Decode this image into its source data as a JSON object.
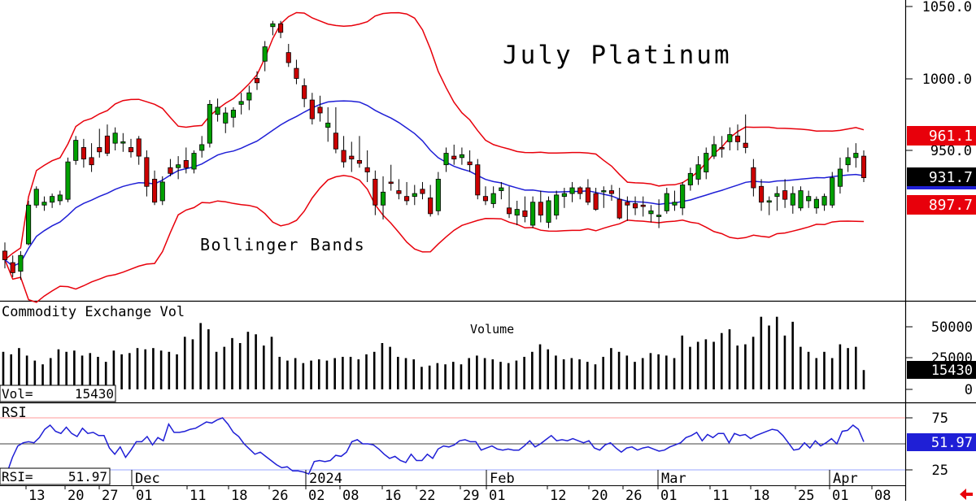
{
  "colors": {
    "band": "#e8000b",
    "mid": "#1f1fd6",
    "up": "#00a000",
    "down": "#cc0000",
    "rsi": "#1f1fd6",
    "vol": "#000000",
    "label_red": "#e8000b",
    "label_black": "#000000",
    "label_blue": "#1f1fd6"
  },
  "price_panel": {
    "title": "July Platinum",
    "bands_label": "Bollinger Bands",
    "axis_ticks": [
      "1050.0",
      "1000.0",
      "950.0"
    ],
    "badges": {
      "upper": "961.1",
      "last": "931.7",
      "lower": "897.7"
    }
  },
  "volume_panel": {
    "title": "Commodity Exchange Vol",
    "center_label": "Volume",
    "axis_ticks": [
      "50000",
      "25000",
      "0"
    ],
    "readout_label": "Vol=",
    "readout_value": "15430",
    "badge": "15430"
  },
  "rsi_panel": {
    "title": "RSI",
    "axis_ticks": [
      "75",
      "25"
    ],
    "readout_label": "RSI=",
    "readout_value": "51.97",
    "badge": "51.97"
  },
  "x_axis": {
    "day_labels": [
      "13",
      "20",
      "27",
      "01",
      "11",
      "18",
      "26",
      "02",
      "08",
      "16",
      "22",
      "29",
      "01",
      "12",
      "20",
      "26",
      "01",
      "11",
      "18",
      "25",
      "01",
      "08"
    ],
    "month_labels": [
      "Dec",
      "2024",
      "Feb",
      "Mar",
      "Apr"
    ]
  },
  "chart_data": [
    {
      "type": "candlestick",
      "title": "July Platinum",
      "annotations": [
        "Bollinger Bands"
      ],
      "ylim": [
        870,
        1060
      ],
      "yticks": [
        950,
        1000,
        1050
      ],
      "last_values": {
        "upper_band": 961.1,
        "close": 931.7,
        "lower_band": 897.7
      },
      "x_labels": [
        "13",
        "20",
        "27",
        "01",
        "11",
        "18",
        "26",
        "02",
        "08",
        "16",
        "22",
        "29",
        "01",
        "12",
        "20",
        "26",
        "01",
        "11",
        "18",
        "25",
        "01",
        "08"
      ],
      "month_labels": [
        "Dec",
        "2024",
        "Feb",
        "Mar",
        "Apr"
      ],
      "ohlc": [
        [
          880,
          886,
          868,
          874
        ],
        [
          872,
          877,
          862,
          865
        ],
        [
          866,
          880,
          860,
          877
        ],
        [
          885,
          915,
          884,
          912
        ],
        [
          912,
          925,
          910,
          923
        ],
        [
          912,
          918,
          908,
          914
        ],
        [
          914,
          920,
          910,
          918
        ],
        [
          915,
          922,
          912,
          919
        ],
        [
          916,
          945,
          914,
          942
        ],
        [
          943,
          960,
          940,
          957
        ],
        [
          952,
          958,
          938,
          944
        ],
        [
          945,
          955,
          935,
          940
        ],
        [
          952,
          965,
          945,
          949
        ],
        [
          960,
          968,
          946,
          948
        ],
        [
          955,
          966,
          950,
          962
        ],
        [
          955,
          962,
          949,
          956
        ],
        [
          952,
          958,
          945,
          949
        ],
        [
          958,
          960,
          940,
          946
        ],
        [
          945,
          950,
          918,
          925
        ],
        [
          930,
          936,
          912,
          914
        ],
        [
          915,
          932,
          912,
          928
        ],
        [
          938,
          944,
          932,
          934
        ],
        [
          938,
          946,
          930,
          940
        ],
        [
          943,
          952,
          934,
          938
        ],
        [
          937,
          950,
          934,
          948
        ],
        [
          950,
          960,
          945,
          954
        ],
        [
          955,
          985,
          952,
          982
        ],
        [
          975,
          986,
          970,
          980
        ],
        [
          969,
          980,
          962,
          976
        ],
        [
          973,
          980,
          966,
          978
        ],
        [
          982,
          990,
          975,
          984
        ],
        [
          985,
          995,
          978,
          990
        ],
        [
          1000,
          1005,
          992,
          997
        ],
        [
          1012,
          1026,
          1005,
          1022
        ],
        [
          1036,
          1040,
          1030,
          1038
        ],
        [
          1038,
          1040,
          1028,
          1032
        ],
        [
          1018,
          1024,
          1008,
          1011
        ],
        [
          1007,
          1013,
          996,
          1000
        ],
        [
          995,
          1000,
          980,
          986
        ],
        [
          985,
          990,
          968,
          972
        ],
        [
          980,
          988,
          970,
          976
        ],
        [
          966,
          980,
          956,
          969
        ],
        [
          962,
          980,
          948,
          951
        ],
        [
          950,
          960,
          938,
          942
        ],
        [
          946,
          956,
          935,
          944
        ],
        [
          943,
          960,
          938,
          941
        ],
        [
          938,
          950,
          928,
          935
        ],
        [
          930,
          936,
          905,
          912
        ],
        [
          912,
          932,
          902,
          921
        ],
        [
          928,
          940,
          922,
          927
        ],
        [
          922,
          930,
          916,
          920
        ],
        [
          918,
          928,
          912,
          915
        ],
        [
          918,
          926,
          912,
          920
        ],
        [
          923,
          928,
          916,
          920
        ],
        [
          917,
          926,
          904,
          906
        ],
        [
          908,
          935,
          905,
          930
        ],
        [
          940,
          952,
          935,
          948
        ],
        [
          946,
          954,
          940,
          944
        ],
        [
          945,
          952,
          940,
          947
        ],
        [
          942,
          950,
          935,
          940
        ],
        [
          940,
          944,
          916,
          919
        ],
        [
          918,
          925,
          912,
          915
        ],
        [
          913,
          925,
          910,
          920
        ],
        [
          922,
          928,
          916,
          924
        ],
        [
          910,
          925,
          903,
          906
        ],
        [
          905,
          915,
          898,
          909
        ],
        [
          908,
          918,
          900,
          904
        ],
        [
          898,
          918,
          896,
          914
        ],
        [
          914,
          922,
          900,
          905
        ],
        [
          900,
          918,
          896,
          915
        ],
        [
          905,
          922,
          902,
          919
        ],
        [
          918,
          924,
          910,
          920
        ],
        [
          920,
          928,
          914,
          924
        ],
        [
          924,
          925,
          916,
          920
        ],
        [
          924,
          930,
          912,
          914
        ],
        [
          920,
          924,
          908,
          909
        ],
        [
          922,
          925,
          910,
          922
        ],
        [
          922,
          926,
          915,
          920
        ],
        [
          916,
          924,
          902,
          903
        ],
        [
          914,
          918,
          901,
          912
        ],
        [
          913,
          918,
          905,
          910
        ],
        [
          912,
          918,
          904,
          911
        ],
        [
          906,
          912,
          900,
          908
        ],
        [
          904,
          916,
          896,
          905
        ],
        [
          908,
          924,
          906,
          920
        ],
        [
          912,
          922,
          908,
          914
        ],
        [
          910,
          928,
          905,
          926
        ],
        [
          926,
          938,
          922,
          934
        ],
        [
          930,
          946,
          926,
          940
        ],
        [
          935,
          952,
          930,
          948
        ],
        [
          946,
          960,
          944,
          954
        ],
        [
          952,
          960,
          945,
          951
        ],
        [
          956,
          966,
          950,
          961
        ],
        [
          960,
          968,
          950,
          956
        ],
        [
          955,
          975,
          948,
          952
        ],
        [
          938,
          944,
          918,
          924
        ],
        [
          925,
          930,
          908,
          914
        ],
        [
          914,
          918,
          905,
          915
        ],
        [
          918,
          925,
          908,
          920
        ],
        [
          922,
          930,
          910,
          916
        ],
        [
          912,
          925,
          906,
          920
        ],
        [
          910,
          925,
          908,
          922
        ],
        [
          915,
          922,
          910,
          918
        ],
        [
          910,
          918,
          906,
          916
        ],
        [
          912,
          920,
          908,
          918
        ],
        [
          912,
          935,
          910,
          931
        ],
        [
          925,
          945,
          920,
          937
        ],
        [
          940,
          952,
          935,
          945
        ],
        [
          945,
          955,
          938,
          948
        ],
        [
          946,
          950,
          928,
          931
        ]
      ]
    },
    {
      "type": "bar",
      "title": "Commodity Exchange Vol",
      "annotations": [
        "Volume"
      ],
      "ylim": [
        0,
        60000
      ],
      "yticks": [
        0,
        25000,
        50000
      ],
      "last_value": 15430,
      "values": [
        30000,
        28000,
        33000,
        27000,
        23000,
        20000,
        25000,
        32000,
        30000,
        31000,
        27000,
        29000,
        26000,
        22000,
        31000,
        28000,
        29000,
        33000,
        32000,
        33000,
        31000,
        30000,
        28000,
        42000,
        40000,
        53000,
        48000,
        30000,
        34000,
        41000,
        37000,
        46000,
        44000,
        35000,
        42000,
        26000,
        23000,
        25000,
        21000,
        23000,
        24000,
        23000,
        25000,
        26000,
        26000,
        24000,
        28000,
        30000,
        37000,
        34000,
        26000,
        25000,
        24000,
        18000,
        19000,
        21000,
        20000,
        22000,
        20000,
        25000,
        27000,
        25000,
        24000,
        22000,
        21000,
        23000,
        26000,
        30000,
        36000,
        32000,
        27000,
        24000,
        25000,
        24000,
        22000,
        20000,
        26000,
        33000,
        30000,
        27000,
        22000,
        25000,
        29000,
        28000,
        27000,
        25000,
        43000,
        34000,
        38000,
        40000,
        38000,
        45000,
        48000,
        35000,
        36000,
        42000,
        58000,
        51000,
        58000,
        43000,
        54000,
        34000,
        30000,
        25000,
        30000,
        25000,
        36000,
        33000,
        34000,
        15430
      ]
    },
    {
      "type": "line",
      "title": "RSI",
      "ylim": [
        20,
        80
      ],
      "yticks": [
        25,
        75
      ],
      "last_value": 51.97,
      "values": [
        26,
        22,
        37,
        48,
        51,
        52,
        51,
        56,
        64,
        68,
        62,
        60,
        66,
        60,
        57,
        65,
        60,
        61,
        58,
        58,
        46,
        40,
        47,
        37,
        44,
        52,
        52,
        57,
        49,
        56,
        53,
        69,
        61,
        61,
        62,
        64,
        65,
        68,
        71,
        70,
        73,
        75,
        69,
        61,
        57,
        50,
        45,
        40,
        42,
        38,
        34,
        30,
        27,
        28,
        24,
        24,
        23,
        21,
        33,
        34,
        33,
        34,
        39,
        38,
        42,
        52,
        54,
        50,
        50,
        49,
        45,
        40,
        36,
        38,
        34,
        32,
        40,
        34,
        34,
        40,
        36,
        45,
        48,
        47,
        49,
        53,
        54,
        52,
        52,
        44,
        46,
        48,
        45,
        44,
        45,
        44,
        44,
        48,
        53,
        47,
        50,
        54,
        58,
        53,
        54,
        53,
        55,
        53,
        51,
        53,
        46,
        44,
        49,
        51,
        46,
        42,
        46,
        47,
        44,
        46,
        47,
        45,
        43,
        44,
        47,
        49,
        51,
        56,
        58,
        61,
        53,
        59,
        56,
        60,
        60,
        51,
        60,
        58,
        59,
        55,
        58,
        60,
        62,
        64,
        63,
        58,
        51,
        44,
        45,
        51,
        46,
        53,
        48,
        51,
        55,
        50,
        62,
        63,
        68,
        64,
        52
      ]
    }
  ]
}
